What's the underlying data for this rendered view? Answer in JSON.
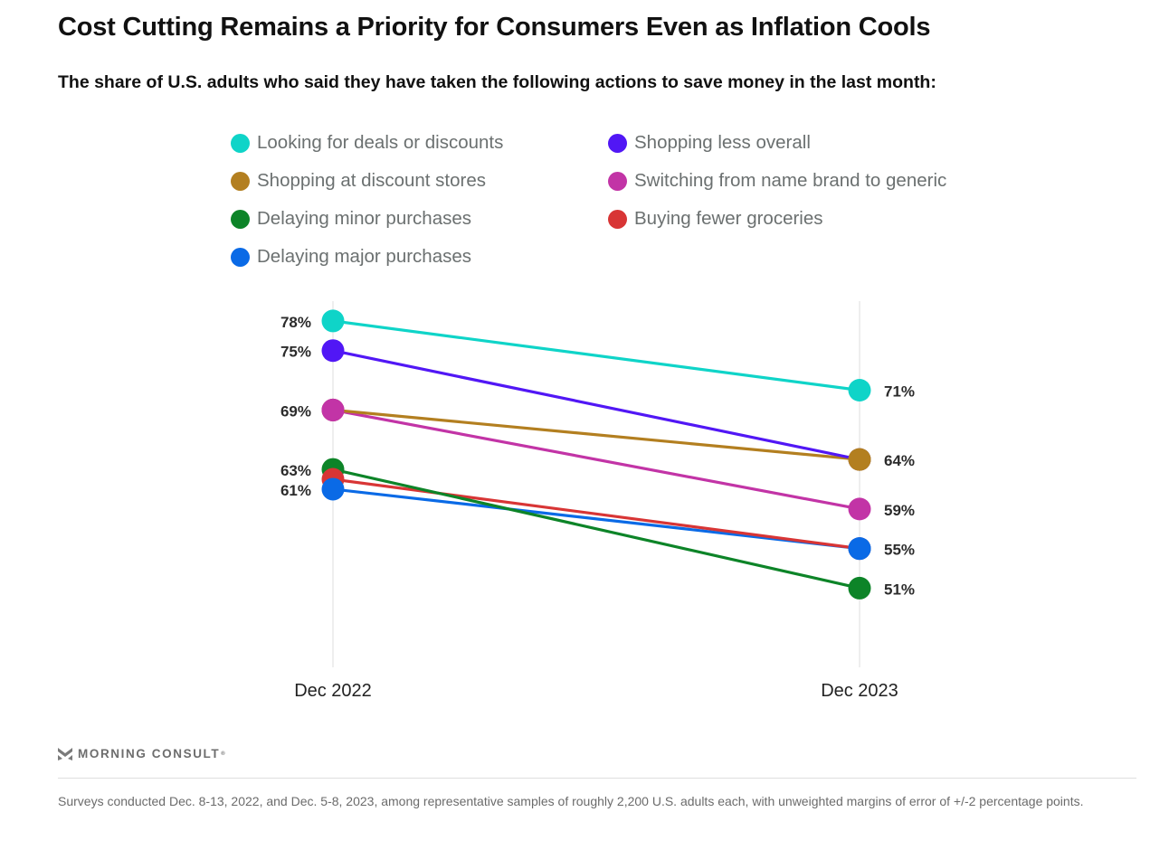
{
  "header": {
    "title": "Cost Cutting Remains a Priority for Consumers Even as Inflation Cools",
    "subtitle": "The share of U.S. adults who said they have taken the following actions to save money in the last month:"
  },
  "chart_data": {
    "type": "line",
    "subtype": "slope",
    "title": "Cost Cutting Remains a Priority for Consumers Even as Inflation Cools",
    "subtitle": "The share of U.S. adults who said they have taken the following actions to save money in the last month:",
    "x": [
      "Dec 2022",
      "Dec 2023"
    ],
    "xlabel": "",
    "ylabel": "",
    "ylim": [
      43,
      80
    ],
    "grid": false,
    "legend_position": "top",
    "unit": "%",
    "series": [
      {
        "name": "Looking for deals or discounts",
        "color": "#0fd4c8",
        "values": [
          78,
          71
        ]
      },
      {
        "name": "Shopping less overall",
        "color": "#5117f5",
        "values": [
          75,
          64
        ]
      },
      {
        "name": "Shopping at discount stores",
        "color": "#b37f20",
        "values": [
          69,
          64
        ]
      },
      {
        "name": "Switching from name brand to generic",
        "color": "#c234a6",
        "values": [
          69,
          59
        ]
      },
      {
        "name": "Delaying minor purchases",
        "color": "#0d8428",
        "values": [
          63,
          51
        ]
      },
      {
        "name": "Buying fewer groceries",
        "color": "#d83535",
        "values": [
          62,
          55
        ]
      },
      {
        "name": "Delaying major purchases",
        "color": "#0a6ae6",
        "values": [
          61,
          55
        ]
      }
    ],
    "data_labels": {
      "left": [
        "78%",
        "75%",
        "69%",
        "63%",
        "61%"
      ],
      "left_values": [
        78,
        75,
        69,
        63,
        61
      ],
      "right": [
        "71%",
        "64%",
        "59%",
        "55%",
        "51%"
      ],
      "right_values": [
        71,
        64,
        59,
        55,
        51
      ]
    }
  },
  "legend": {
    "items": [
      {
        "label": "Looking for deals or discounts",
        "color": "#0fd4c8"
      },
      {
        "label": "Shopping at discount stores",
        "color": "#b37f20"
      },
      {
        "label": "Delaying minor purchases",
        "color": "#0d8428"
      },
      {
        "label": "Delaying major purchases",
        "color": "#0a6ae6"
      },
      {
        "label": "Shopping less overall",
        "color": "#5117f5"
      },
      {
        "label": "Switching from name brand to generic",
        "color": "#c234a6"
      },
      {
        "label": "Buying fewer groceries",
        "color": "#d83535"
      }
    ]
  },
  "footer": {
    "brand": "MORNING CONSULT",
    "brand_mark": "®",
    "brand_icon": "morning-consult-logo-icon",
    "note": "Surveys conducted Dec. 8-13, 2022, and Dec. 5-8, 2023, among representative samples of roughly 2,200 U.S. adults each, with unweighted margins of error of +/-2 percentage points."
  }
}
